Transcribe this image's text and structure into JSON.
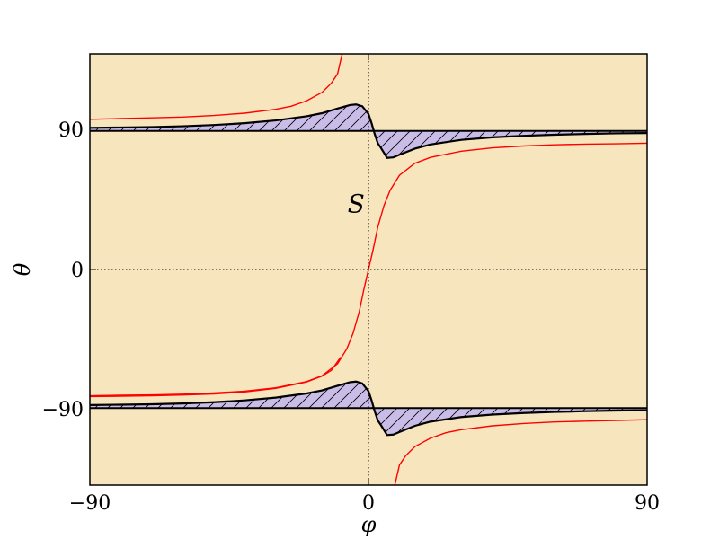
{
  "chart_data": {
    "type": "line",
    "title": "",
    "xlabel": "φ",
    "ylabel": "θ",
    "xlim": [
      -90,
      90
    ],
    "ylim": [
      -140,
      140
    ],
    "xticks": [
      -90,
      0,
      90
    ],
    "yticks": [
      -90,
      0,
      90
    ],
    "xtick_labels": [
      "−90",
      "0",
      "90"
    ],
    "ytick_labels": [
      "−90",
      "0",
      "90"
    ],
    "grid": false,
    "reference_lines": {
      "x": 0,
      "y": 0,
      "style": "dotted"
    },
    "annotations": [
      {
        "text": "S",
        "x": -4,
        "y": 37
      }
    ],
    "series": [
      {
        "color": "#ff0000",
        "points": [
          [
            -90,
            -82
          ],
          [
            -80,
            -81.6
          ],
          [
            -70,
            -81.4
          ],
          [
            -60,
            -81
          ],
          [
            -50,
            -80.2
          ],
          [
            -40,
            -79
          ],
          [
            -30,
            -76.8
          ],
          [
            -20,
            -72.8
          ],
          [
            -15,
            -69
          ],
          [
            -10,
            -61.2
          ],
          [
            -7,
            -51.5
          ],
          [
            -5,
            -41.5
          ],
          [
            -3,
            -27.5
          ],
          [
            -1.5,
            -13
          ],
          [
            0,
            0
          ],
          [
            1.5,
            13
          ],
          [
            3,
            27.5
          ],
          [
            5,
            41.5
          ],
          [
            7,
            51.5
          ],
          [
            10,
            61.2
          ],
          [
            15,
            69
          ],
          [
            20,
            72.8
          ],
          [
            30,
            76.8
          ],
          [
            40,
            79
          ],
          [
            50,
            80.2
          ],
          [
            60,
            81
          ],
          [
            70,
            81.4
          ],
          [
            80,
            81.6
          ],
          [
            90,
            82
          ]
        ]
      },
      {
        "color": "#ff0000",
        "points": [
          [
            -90,
            97.5
          ],
          [
            -80,
            98
          ],
          [
            -70,
            98.5
          ],
          [
            -60,
            99
          ],
          [
            -50,
            100
          ],
          [
            -40,
            101.5
          ],
          [
            -30,
            104
          ],
          [
            -25,
            106
          ],
          [
            -20,
            109.5
          ],
          [
            -15,
            115
          ],
          [
            -12,
            121
          ],
          [
            -10,
            127
          ],
          [
            -8.5,
            140
          ]
        ]
      },
      {
        "color": "#ff0000",
        "points": [
          [
            8.5,
            -140
          ],
          [
            10,
            -127
          ],
          [
            12,
            -121
          ],
          [
            15,
            -115
          ],
          [
            20,
            -109.5
          ],
          [
            25,
            -106
          ],
          [
            30,
            -104
          ],
          [
            40,
            -101.5
          ],
          [
            50,
            -100
          ],
          [
            60,
            -99
          ],
          [
            70,
            -98.5
          ],
          [
            80,
            -98
          ],
          [
            90,
            -97.5
          ]
        ]
      },
      {
        "color": "#ff0000",
        "points": [
          [
            -90,
            -82.5
          ],
          [
            -80,
            -82.3
          ],
          [
            -70,
            -82
          ],
          [
            -60,
            -81.5
          ],
          [
            -50,
            -80.8
          ],
          [
            -40,
            -79.5
          ],
          [
            -30,
            -77.2
          ],
          [
            -20,
            -73
          ],
          [
            -15,
            -69.2
          ],
          [
            -12,
            -65.5
          ],
          [
            -9,
            -57
          ]
        ]
      }
    ],
    "boundary_curves": [
      {
        "color": "#000000",
        "baseline": 90,
        "points": [
          [
            -90,
            92
          ],
          [
            -80,
            92.2
          ],
          [
            -70,
            92.5
          ],
          [
            -60,
            93
          ],
          [
            -50,
            93.8
          ],
          [
            -40,
            95
          ],
          [
            -30,
            96.8
          ],
          [
            -20,
            99.5
          ],
          [
            -15,
            101.5
          ],
          [
            -10,
            104.5
          ],
          [
            -6,
            106.8
          ],
          [
            -4,
            107.2
          ],
          [
            -2,
            106
          ],
          [
            0,
            101
          ],
          [
            1,
            95
          ],
          [
            2,
            88
          ],
          [
            3,
            82
          ],
          [
            4,
            79
          ],
          [
            6,
            72.5
          ],
          [
            8,
            72.8
          ],
          [
            10,
            74.5
          ],
          [
            15,
            78.5
          ],
          [
            20,
            81.2
          ],
          [
            30,
            84.2
          ],
          [
            40,
            85.8
          ],
          [
            50,
            86.8
          ],
          [
            60,
            87.5
          ],
          [
            70,
            88
          ],
          [
            80,
            88.4
          ],
          [
            90,
            88.6
          ]
        ]
      },
      {
        "color": "#000000",
        "baseline": -90,
        "points": [
          [
            -90,
            -88
          ],
          [
            -80,
            -87.8
          ],
          [
            -70,
            -87.5
          ],
          [
            -60,
            -87
          ],
          [
            -50,
            -86.2
          ],
          [
            -40,
            -85
          ],
          [
            -30,
            -83.2
          ],
          [
            -20,
            -80.5
          ],
          [
            -15,
            -78.5
          ],
          [
            -10,
            -75.5
          ],
          [
            -6,
            -73.2
          ],
          [
            -4,
            -72.8
          ],
          [
            -2,
            -74
          ],
          [
            0,
            -79
          ],
          [
            1,
            -85
          ],
          [
            2,
            -92
          ],
          [
            3,
            -98
          ],
          [
            4,
            -101
          ],
          [
            6,
            -107.5
          ],
          [
            8,
            -107.2
          ],
          [
            10,
            -105.5
          ],
          [
            15,
            -101.5
          ],
          [
            20,
            -98.8
          ],
          [
            30,
            -95.8
          ],
          [
            40,
            -94.2
          ],
          [
            50,
            -93.2
          ],
          [
            60,
            -92.5
          ],
          [
            70,
            -92
          ],
          [
            80,
            -91.6
          ],
          [
            90,
            -91.4
          ]
        ]
      }
    ],
    "colors": {
      "background": "#f7e6bd",
      "fill": "#c9bde8",
      "curve": "#ff0000",
      "boundary": "#000000"
    }
  }
}
